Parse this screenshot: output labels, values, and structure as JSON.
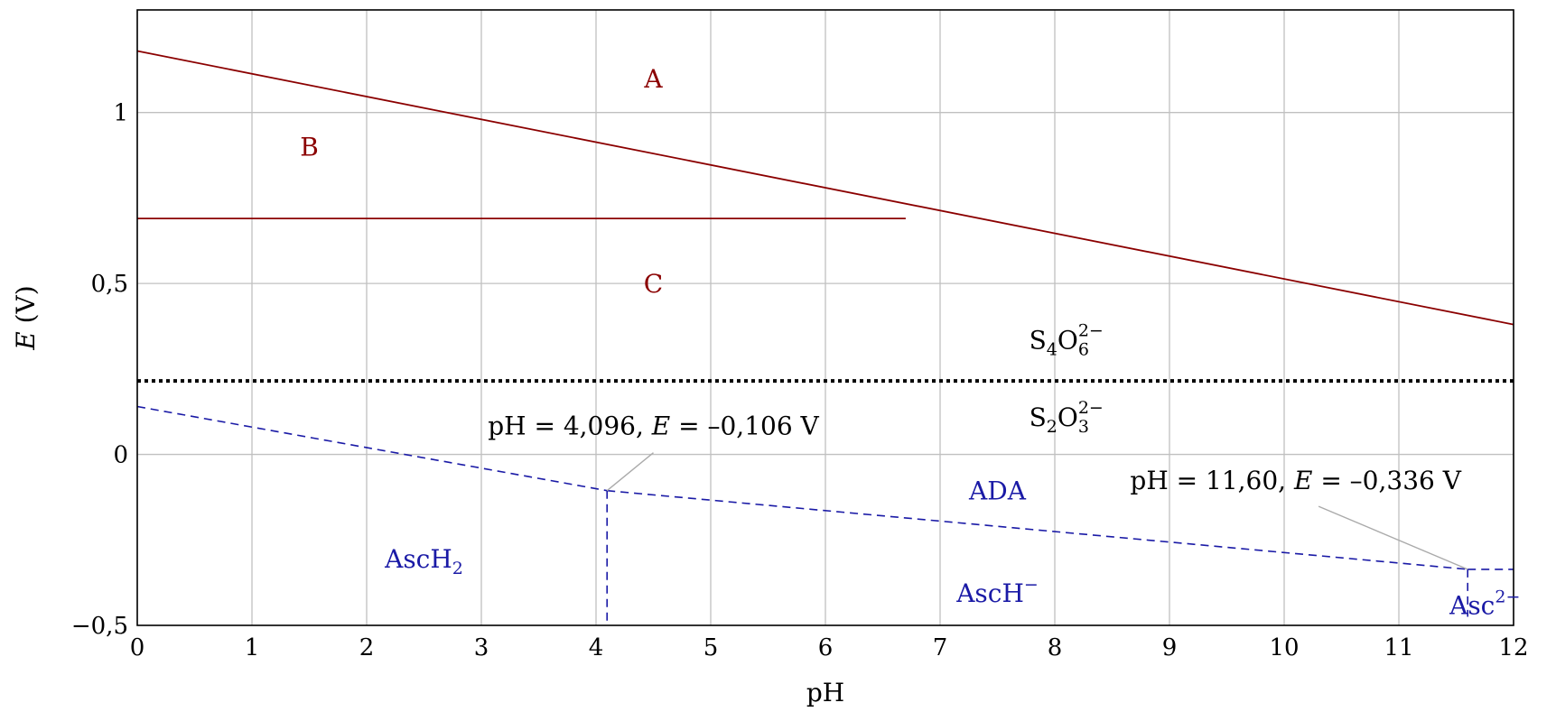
{
  "chart_data": {
    "type": "line",
    "xlabel": "pH",
    "ylabel_italic": "E",
    "ylabel_unit": " (V)",
    "xlim": [
      0,
      12
    ],
    "ylim": [
      -0.5,
      1.3
    ],
    "grid": true,
    "x_ticks": [
      {
        "value": 0,
        "label": "0"
      },
      {
        "value": 1,
        "label": "1"
      },
      {
        "value": 2,
        "label": "2"
      },
      {
        "value": 3,
        "label": "3"
      },
      {
        "value": 4,
        "label": "4"
      },
      {
        "value": 5,
        "label": "5"
      },
      {
        "value": 6,
        "label": "6"
      },
      {
        "value": 7,
        "label": "7"
      },
      {
        "value": 8,
        "label": "8"
      },
      {
        "value": 9,
        "label": "9"
      },
      {
        "value": 10,
        "label": "10"
      },
      {
        "value": 11,
        "label": "11"
      },
      {
        "value": 12,
        "label": "12"
      }
    ],
    "y_ticks": [
      {
        "value": -0.5,
        "label": "−0,5"
      },
      {
        "value": 0,
        "label": "0"
      },
      {
        "value": 0.5,
        "label": "0,5"
      },
      {
        "value": 1,
        "label": "1"
      }
    ],
    "series": [
      {
        "id": "line-ab",
        "color": "#8b0000",
        "style": "solid",
        "x": [
          0,
          12
        ],
        "y": [
          1.18,
          0.38
        ]
      },
      {
        "id": "line-bc",
        "color": "#8b0000",
        "style": "solid",
        "x": [
          0,
          6.7
        ],
        "y": [
          0.69,
          0.69
        ]
      },
      {
        "id": "line-s4o6-s2o3",
        "color": "#000000",
        "style": "dotted",
        "x": [
          0,
          12
        ],
        "y": [
          0.215,
          0.215
        ]
      },
      {
        "id": "line-ada-asch2",
        "color": "#1a1aa6",
        "style": "dashed",
        "x": [
          0,
          4.096
        ],
        "y": [
          0.14,
          -0.106
        ]
      },
      {
        "id": "line-ada-asch",
        "color": "#1a1aa6",
        "style": "dashed",
        "x": [
          4.096,
          11.6
        ],
        "y": [
          -0.106,
          -0.336
        ]
      },
      {
        "id": "line-ada-asc",
        "color": "#1a1aa6",
        "style": "dashed",
        "x": [
          11.6,
          12
        ],
        "y": [
          -0.336,
          -0.336
        ]
      },
      {
        "id": "line-vert-4096",
        "color": "#1a1aa6",
        "style": "dashed",
        "x": [
          4.096,
          4.096
        ],
        "y": [
          -0.106,
          -0.5
        ]
      },
      {
        "id": "line-vert-1160",
        "color": "#1a1aa6",
        "style": "dashed",
        "x": [
          11.6,
          11.6
        ],
        "y": [
          -0.336,
          -0.475
        ]
      }
    ],
    "region_labels": [
      {
        "id": "label-a",
        "text": "A",
        "x": 4.5,
        "y": 1.1,
        "color": "#8b0000"
      },
      {
        "id": "label-b",
        "text": "B",
        "x": 1.5,
        "y": 0.9,
        "color": "#8b0000"
      },
      {
        "id": "label-c",
        "text": "C",
        "x": 4.5,
        "y": 0.5,
        "color": "#8b0000"
      },
      {
        "id": "label-ada",
        "text": "ADA",
        "x": 7.5,
        "y": -0.105,
        "color": "#1a1aa6"
      }
    ],
    "species_labels": [
      {
        "id": "label-s4o6",
        "base1": "S",
        "sub1": "4",
        "base2": "O",
        "sub2": "6",
        "sup": "2−",
        "x": 8.1,
        "y": 0.335,
        "color": "#000000"
      },
      {
        "id": "label-s2o3",
        "base1": "S",
        "sub1": "2",
        "base2": "O",
        "sub2": "3",
        "sup": "2−",
        "x": 8.1,
        "y": 0.11,
        "color": "#000000"
      },
      {
        "id": "label-asch2",
        "base1": "AscH",
        "sub1": "2",
        "x": 2.5,
        "y": -0.305,
        "color": "#1a1aa6"
      },
      {
        "id": "label-asch-minus",
        "base1": "AscH",
        "sup": "−",
        "x": 7.5,
        "y": -0.405,
        "color": "#1a1aa6"
      },
      {
        "id": "label-asc-2minus",
        "base1": "Asc",
        "sup": "2−",
        "x": 11.75,
        "y": -0.44,
        "color": "#1a1aa6"
      }
    ],
    "annotations": [
      {
        "id": "annot-4096",
        "prefix": "pH = 4,096, ",
        "var": "E",
        "suffix": " = –0,106 V",
        "x": 4.5,
        "y": 0.085,
        "point_x": 4.096,
        "point_y": -0.106,
        "leader_from_x": 4.5,
        "leader_from_y": 0.005
      },
      {
        "id": "annot-1160",
        "prefix": "pH = 11,60, ",
        "var": "E",
        "suffix": " = –0,336 V",
        "x": 10.1,
        "y": -0.075,
        "point_x": 11.6,
        "point_y": -0.336,
        "leader_from_x": 10.3,
        "leader_from_y": -0.152
      }
    ]
  }
}
